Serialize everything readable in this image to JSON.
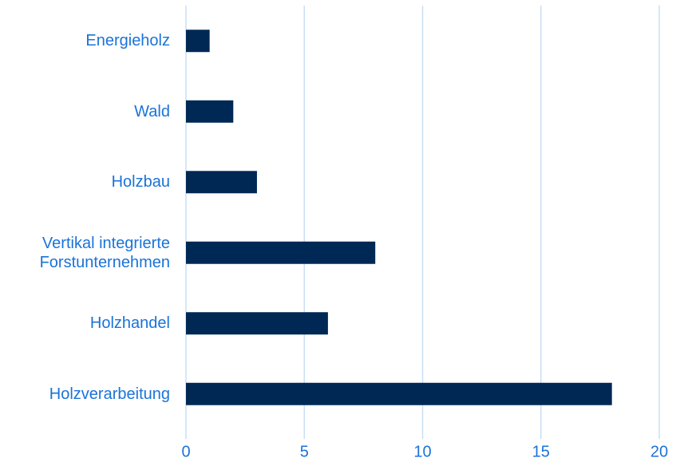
{
  "chart_data": {
    "type": "bar",
    "orientation": "horizontal",
    "categories": [
      "Energieholz",
      "Wald",
      "Holzbau",
      "Vertikal integrierte\nForstunternehmen",
      "Holzhandel",
      "Holzverarbeitung"
    ],
    "values": [
      1,
      2,
      3,
      8,
      6,
      18
    ],
    "color": "#002855",
    "label_color": "#1a73d9",
    "grid_color": "#c9dff5",
    "xlim": [
      0,
      20
    ],
    "xticks": [
      0,
      5,
      10,
      15,
      20
    ],
    "grid": true
  }
}
